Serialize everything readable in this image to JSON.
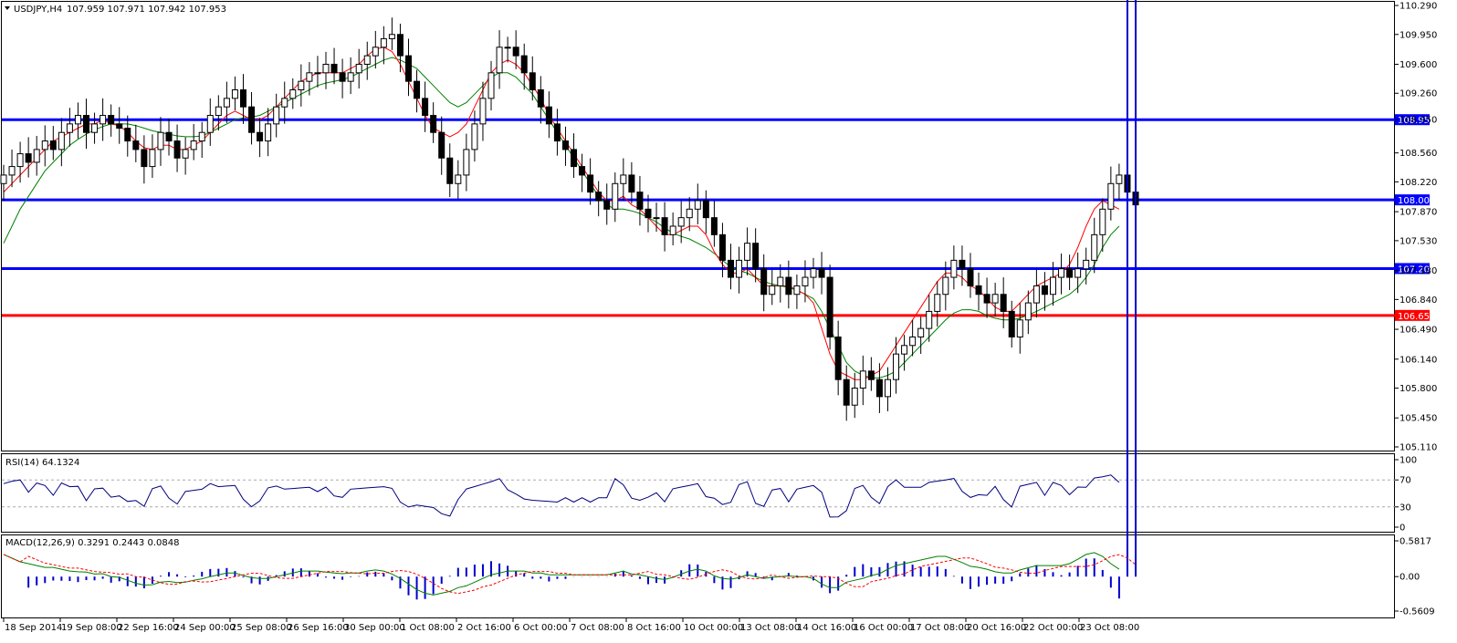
{
  "header": {
    "symbol": "USDJPY,H4",
    "ohlc": "107.959 107.971 107.942 107.953"
  },
  "colors": {
    "axis": "#000000",
    "hline_blue": "#0000ff",
    "hline_red": "#ff0000",
    "candle": "#000000",
    "sma_fast": "#ff0000",
    "sma_slow": "#008000",
    "sma_highlight": "#ffff00",
    "rsi": "#000080",
    "macd_hist": "#0000cc",
    "macd_line": "#008000",
    "macd_signal": "#ff0000"
  },
  "chart_data": [
    {
      "type": "candlestick",
      "panel": "price",
      "ylim": [
        105.11,
        110.29
      ],
      "y_ticks": [
        "110.290",
        "109.950",
        "109.600",
        "109.260",
        "108.950",
        "108.560",
        "108.220",
        "107.870",
        "107.530",
        "107.180",
        "106.840",
        "106.490",
        "106.140",
        "105.800",
        "105.450",
        "105.110"
      ],
      "horizontal_lines": [
        {
          "value": 108.95,
          "label": "108.950",
          "color": "blue"
        },
        {
          "value": 108.009,
          "label": "108.009",
          "color": "blue"
        },
        {
          "value": 107.203,
          "label": "107.203",
          "color": "blue"
        },
        {
          "value": 106.653,
          "label": "106.653",
          "color": "red"
        }
      ],
      "x_labels": [
        "18 Sep 2014",
        "19 Sep 08:00",
        "22 Sep 16:00",
        "24 Sep 00:00",
        "25 Sep 08:00",
        "26 Sep 16:00",
        "30 Sep 00:00",
        "1 Oct 08:00",
        "2 Oct 16:00",
        "6 Oct 00:00",
        "7 Oct 08:00",
        "8 Oct 16:00",
        "10 Oct 00:00",
        "13 Oct 08:00",
        "14 Oct 16:00",
        "16 Oct 00:00",
        "17 Oct 08:00",
        "20 Oct 16:00",
        "22 Oct 00:00",
        "23 Oct 08:00"
      ],
      "close_series": [
        108.3,
        108.4,
        108.55,
        108.45,
        108.6,
        108.7,
        108.6,
        108.8,
        108.9,
        109.0,
        108.8,
        108.9,
        109.0,
        108.9,
        108.85,
        108.7,
        108.6,
        108.4,
        108.6,
        108.8,
        108.7,
        108.5,
        108.6,
        108.7,
        108.8,
        109.0,
        109.1,
        109.2,
        109.3,
        109.1,
        108.8,
        108.7,
        108.9,
        109.1,
        109.2,
        109.3,
        109.4,
        109.5,
        109.5,
        109.6,
        109.5,
        109.4,
        109.5,
        109.6,
        109.7,
        109.8,
        109.9,
        109.95,
        109.7,
        109.4,
        109.2,
        109.0,
        108.8,
        108.5,
        108.2,
        108.3,
        108.6,
        108.9,
        109.2,
        109.5,
        109.8,
        109.8,
        109.7,
        109.5,
        109.3,
        109.1,
        108.9,
        108.7,
        108.6,
        108.4,
        108.3,
        108.1,
        108.0,
        107.9,
        108.2,
        108.3,
        108.1,
        107.9,
        107.8,
        107.8,
        107.6,
        107.7,
        107.8,
        107.9,
        108.0,
        107.8,
        107.6,
        107.3,
        107.1,
        107.3,
        107.5,
        107.2,
        106.9,
        107.0,
        107.1,
        106.9,
        107.0,
        107.1,
        107.2,
        107.1,
        106.4,
        105.9,
        105.6,
        105.8,
        106.0,
        105.9,
        105.7,
        105.9,
        106.2,
        106.3,
        106.4,
        106.5,
        106.7,
        106.9,
        107.1,
        107.3,
        107.2,
        107.0,
        106.9,
        106.8,
        106.9,
        106.7,
        106.4,
        106.6,
        106.8,
        107.0,
        106.9,
        107.1,
        107.2,
        107.1,
        107.2,
        107.3,
        107.6,
        107.9,
        108.2,
        108.3,
        108.1,
        107.95
      ],
      "sma_fast_series": [
        108.1,
        108.2,
        108.3,
        108.4,
        108.5,
        108.6,
        108.7,
        108.75,
        108.8,
        108.85,
        108.9,
        108.9,
        108.95,
        108.9,
        108.88,
        108.8,
        108.7,
        108.62,
        108.6,
        108.65,
        108.65,
        108.6,
        108.6,
        108.65,
        108.7,
        108.8,
        108.9,
        109.0,
        109.05,
        109.0,
        108.95,
        108.95,
        109.0,
        109.1,
        109.2,
        109.3,
        109.4,
        109.45,
        109.5,
        109.5,
        109.5,
        109.5,
        109.55,
        109.6,
        109.7,
        109.78,
        109.8,
        109.75,
        109.6,
        109.4,
        109.2,
        109.0,
        108.85,
        108.8,
        108.75,
        108.8,
        108.9,
        109.1,
        109.3,
        109.5,
        109.6,
        109.65,
        109.6,
        109.5,
        109.35,
        109.2,
        109.0,
        108.85,
        108.7,
        108.55,
        108.4,
        108.25,
        108.1,
        108.0,
        108.0,
        108.05,
        107.95,
        107.9,
        107.8,
        107.7,
        107.6,
        107.6,
        107.65,
        107.7,
        107.7,
        107.6,
        107.4,
        107.25,
        107.15,
        107.15,
        107.2,
        107.1,
        107.0,
        107.0,
        107.0,
        107.0,
        106.95,
        106.9,
        106.8,
        106.5,
        106.2,
        106.0,
        105.95,
        105.9,
        105.9,
        105.95,
        106.0,
        106.15,
        106.3,
        106.45,
        106.6,
        106.75,
        106.9,
        107.05,
        107.15,
        107.15,
        107.1,
        107.0,
        106.95,
        106.85,
        106.75,
        106.7,
        106.7,
        106.8,
        106.9,
        107.0,
        107.05,
        107.1,
        107.15,
        107.25,
        107.45,
        107.7,
        107.9,
        108.0,
        107.95,
        107.9
      ],
      "sma_slow_series": [
        107.5,
        107.7,
        107.9,
        108.05,
        108.2,
        108.35,
        108.45,
        108.55,
        108.65,
        108.72,
        108.78,
        108.83,
        108.87,
        108.9,
        108.9,
        108.9,
        108.88,
        108.85,
        108.82,
        108.8,
        108.78,
        108.76,
        108.75,
        108.75,
        108.76,
        108.8,
        108.85,
        108.9,
        108.95,
        108.97,
        108.98,
        109.0,
        109.05,
        109.1,
        109.15,
        109.2,
        109.25,
        109.3,
        109.35,
        109.38,
        109.4,
        109.42,
        109.45,
        109.5,
        109.55,
        109.6,
        109.65,
        109.68,
        109.65,
        109.6,
        109.55,
        109.45,
        109.35,
        109.25,
        109.15,
        109.1,
        109.15,
        109.25,
        109.35,
        109.45,
        109.5,
        109.5,
        109.45,
        109.35,
        109.25,
        109.1,
        108.95,
        108.8,
        108.65,
        108.5,
        108.35,
        108.2,
        108.05,
        107.95,
        107.9,
        107.9,
        107.88,
        107.85,
        107.8,
        107.75,
        107.68,
        107.62,
        107.58,
        107.55,
        107.5,
        107.45,
        107.38,
        107.3,
        107.22,
        107.18,
        107.15,
        107.1,
        107.05,
        107.02,
        107.0,
        106.98,
        106.95,
        106.9,
        106.85,
        106.7,
        106.5,
        106.3,
        106.1,
        106.0,
        105.95,
        105.92,
        105.92,
        105.95,
        106.0,
        106.1,
        106.2,
        106.3,
        106.4,
        106.5,
        106.6,
        106.68,
        106.72,
        106.72,
        106.7,
        106.65,
        106.62,
        106.6,
        106.6,
        106.62,
        106.66,
        106.7,
        106.75,
        106.8,
        106.85,
        106.9,
        106.98,
        107.1,
        107.25,
        107.45,
        107.6,
        107.7
      ]
    },
    {
      "type": "line",
      "panel": "rsi",
      "title": "RSI(14) 64.1324",
      "ylim": [
        0,
        100
      ],
      "y_ticks": [
        "100",
        "70",
        "30",
        "0"
      ],
      "levels": [
        70,
        30
      ]
    },
    {
      "type": "line+bar",
      "panel": "macd",
      "title": "MACD(12,26,9) 0.3291 0.2443 0.0848",
      "ylim": [
        -0.5609,
        0.5817
      ],
      "y_ticks": [
        "0.5817",
        "0.00",
        "-0.5609"
      ]
    }
  ]
}
